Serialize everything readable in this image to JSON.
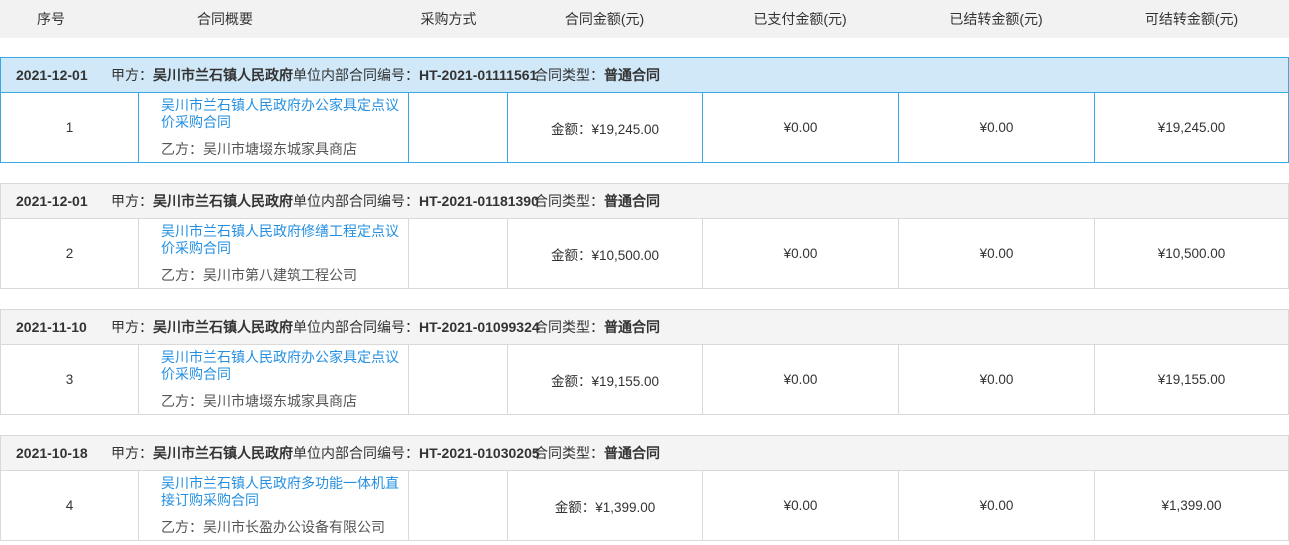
{
  "colors": {
    "accent": "#36a9e0",
    "accent_bg": "#d0e8f7",
    "border": "#d9d9d9",
    "thead_bg": "#f2f2f2",
    "group_header_bg": "#f4f4f4",
    "link": "#2590e2",
    "text": "#333333",
    "text_secondary": "#555555"
  },
  "table": {
    "columns": [
      {
        "label": "序号"
      },
      {
        "label": "合同概要"
      },
      {
        "label": "采购方式"
      },
      {
        "label": "合同金额(元)"
      },
      {
        "label": "已支付金额(元)"
      },
      {
        "label": "已结转金额(元)"
      },
      {
        "label": "可结转金额(元)"
      }
    ],
    "labels": {
      "party_a": "甲方：",
      "contract_no": "单位内部合同编号：",
      "contract_type": "合同类型：",
      "party_b_prefix": "乙方：",
      "amount_prefix": "金额："
    },
    "groups": [
      {
        "date": "2021-12-01",
        "party_a": "吴川市兰石镇人民政府",
        "contract_no": "HT-2021-01111561",
        "contract_type": "普通合同",
        "selected": true,
        "row": {
          "index": "1",
          "title": "吴川市兰石镇人民政府办公家具定点议价采购合同",
          "party_b": "吴川市塘㙍东城家具商店",
          "procurement_method": "",
          "amount": "¥19,245.00",
          "paid": "¥0.00",
          "settled": "¥0.00",
          "available": "¥19,245.00"
        }
      },
      {
        "date": "2021-12-01",
        "party_a": "吴川市兰石镇人民政府",
        "contract_no": "HT-2021-01181390",
        "contract_type": "普通合同",
        "selected": false,
        "row": {
          "index": "2",
          "title": "吴川市兰石镇人民政府修缮工程定点议价采购合同",
          "party_b": "吴川市第八建筑工程公司",
          "procurement_method": "",
          "amount": "¥10,500.00",
          "paid": "¥0.00",
          "settled": "¥0.00",
          "available": "¥10,500.00"
        }
      },
      {
        "date": "2021-11-10",
        "party_a": "吴川市兰石镇人民政府",
        "contract_no": "HT-2021-01099324",
        "contract_type": "普通合同",
        "selected": false,
        "row": {
          "index": "3",
          "title": "吴川市兰石镇人民政府办公家具定点议价采购合同",
          "party_b": "吴川市塘㙍东城家具商店",
          "procurement_method": "",
          "amount": "¥19,155.00",
          "paid": "¥0.00",
          "settled": "¥0.00",
          "available": "¥19,155.00"
        }
      },
      {
        "date": "2021-10-18",
        "party_a": "吴川市兰石镇人民政府",
        "contract_no": "HT-2021-01030205",
        "contract_type": "普通合同",
        "selected": false,
        "row": {
          "index": "4",
          "title": "吴川市兰石镇人民政府多功能一体机直接订购采购合同",
          "party_b": "吴川市长盈办公设备有限公司",
          "procurement_method": "",
          "amount": "¥1,399.00",
          "paid": "¥0.00",
          "settled": "¥0.00",
          "available": "¥1,399.00"
        }
      }
    ]
  }
}
